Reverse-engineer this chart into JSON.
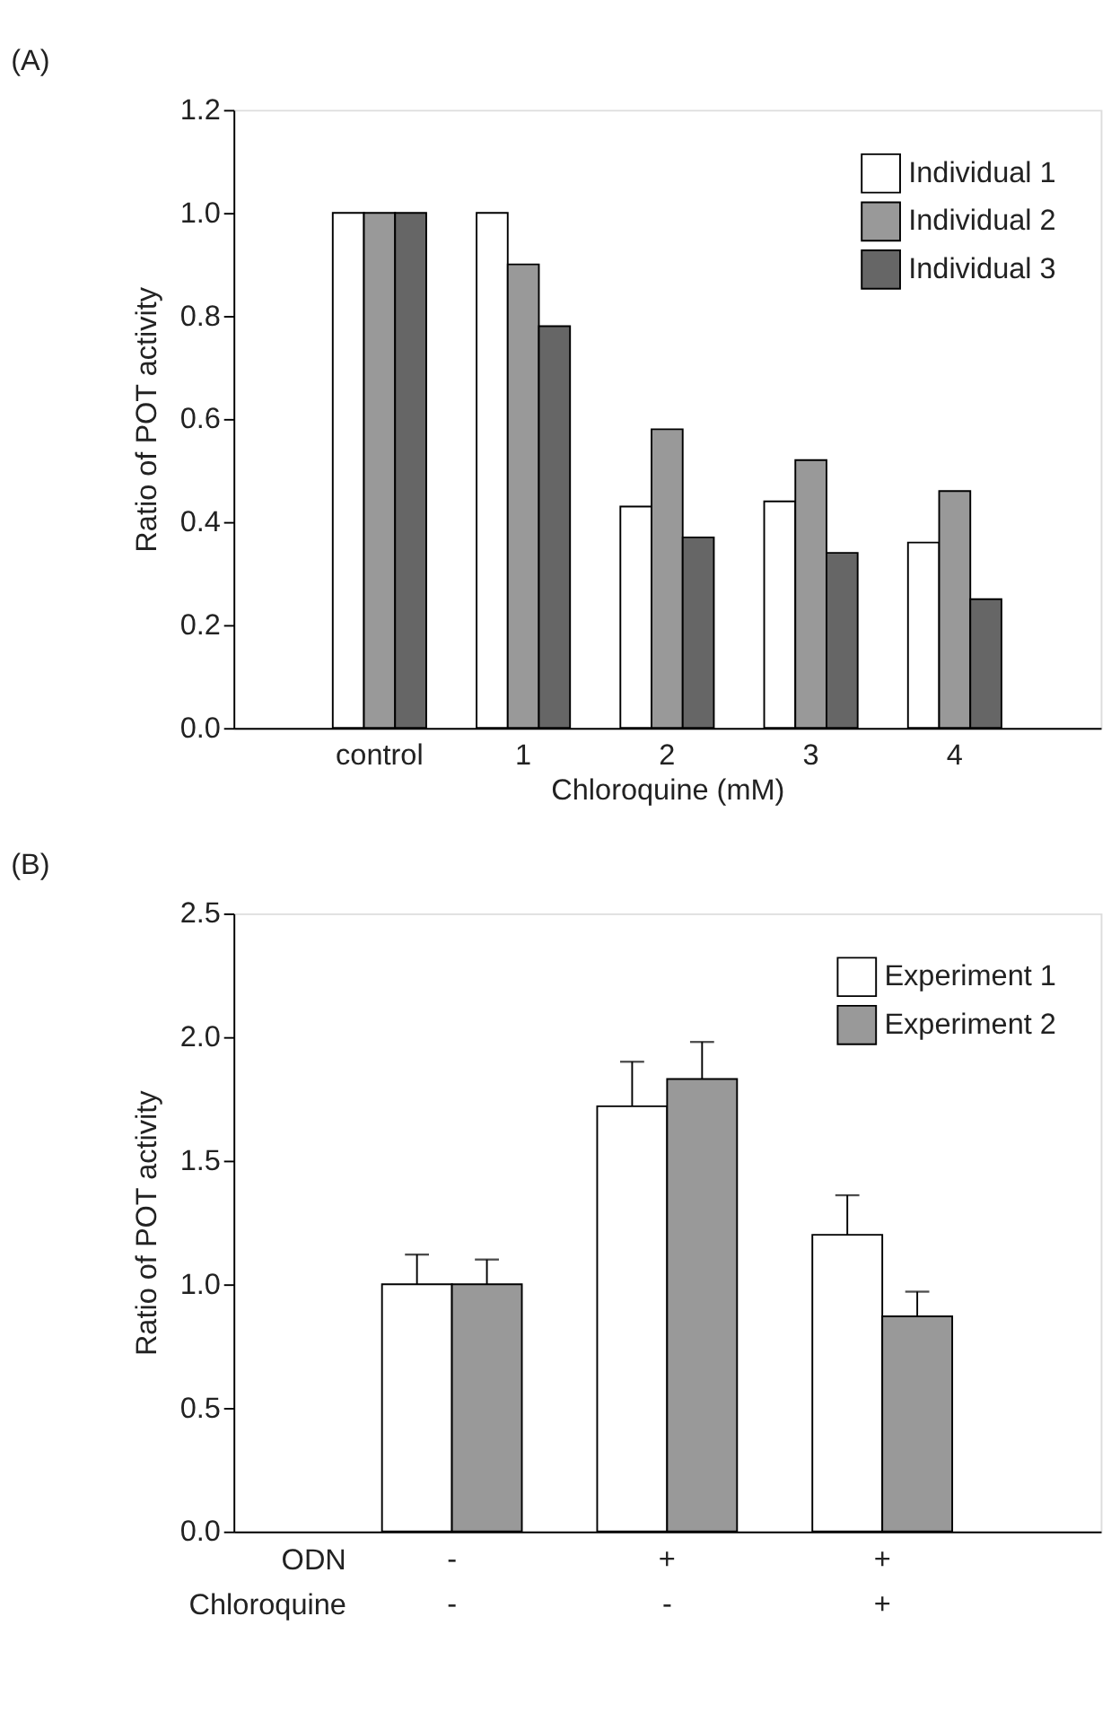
{
  "chart_data": [
    {
      "type": "bar",
      "title": "(A)",
      "xlabel": "Chloroquine (mM)",
      "ylabel": "Ratio of POT activity",
      "categories": [
        "control",
        "1",
        "2",
        "3",
        "4"
      ],
      "series": [
        {
          "name": "Individual 1",
          "color": "#ffffff",
          "values": [
            1.0,
            1.0,
            0.43,
            0.44,
            0.36
          ]
        },
        {
          "name": "Individual 2",
          "color": "#999999",
          "values": [
            1.0,
            0.9,
            0.58,
            0.52,
            0.46
          ]
        },
        {
          "name": "Individual 3",
          "color": "#666666",
          "values": [
            1.0,
            0.78,
            0.37,
            0.34,
            0.25
          ]
        }
      ],
      "ylim": [
        0,
        1.2
      ],
      "yticks": [
        {
          "value": 0,
          "label": "0.0"
        },
        {
          "value": 0.2,
          "label": "0.2"
        },
        {
          "value": 0.4,
          "label": "0.4"
        },
        {
          "value": 0.6,
          "label": "0.6"
        },
        {
          "value": 0.8,
          "label": "0.8"
        },
        {
          "value": 1.0,
          "label": "1.0"
        },
        {
          "value": 1.2,
          "label": "1.2"
        }
      ],
      "legend": "top right",
      "grid": false
    },
    {
      "type": "bar",
      "title": "(B)",
      "ylabel": "Ratio of POT activity",
      "categories": [
        "-\n-",
        "+\n-",
        "+\n+"
      ],
      "annotations": [
        "ODN",
        "Chloroquine"
      ],
      "series": [
        {
          "name": "Experiment 1",
          "color": "#ffffff",
          "values": [
            1.0,
            1.72,
            1.2
          ],
          "errors": [
            [
              1.0,
              1.12
            ],
            [
              1.72,
              1.9
            ],
            [
              1.2,
              1.36
            ]
          ]
        },
        {
          "name": "Experiment 2",
          "color": "#999999",
          "values": [
            1.0,
            1.83,
            0.87
          ],
          "errors": [
            [
              1.0,
              1.1
            ],
            [
              1.83,
              1.98
            ],
            [
              0.87,
              0.97
            ]
          ]
        }
      ],
      "ylim": [
        0,
        2.5
      ],
      "yticks": [
        {
          "value": 0,
          "label": "0.0"
        },
        {
          "value": 0.5,
          "label": "0.5"
        },
        {
          "value": 1.0,
          "label": "1.0"
        },
        {
          "value": 1.5,
          "label": "1.5"
        },
        {
          "value": 2.0,
          "label": "2.0"
        },
        {
          "value": 2.5,
          "label": "2.5"
        }
      ],
      "legend": "top right",
      "grid": false
    }
  ]
}
